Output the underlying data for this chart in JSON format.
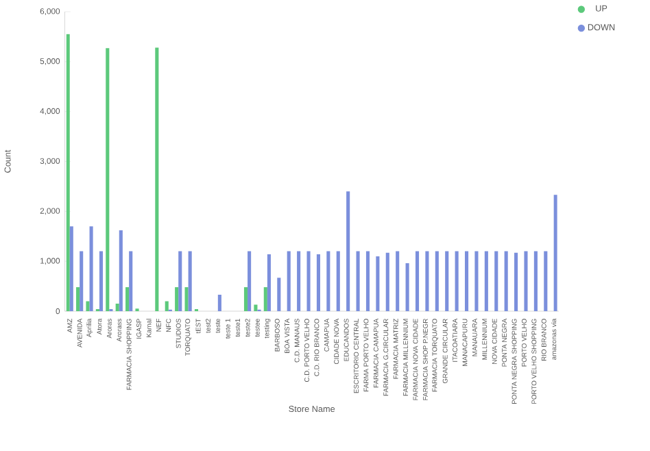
{
  "chart_data": {
    "type": "bar",
    "xlabel": "Store Name",
    "ylabel": "Count",
    "categories": [
      "AMZ",
      "AVENIDA",
      "Aprilia",
      "Atora",
      "Aroras",
      "Arorass",
      "FARMACIA SHOPPING",
      "IGASP",
      "Kamal",
      "NEF",
      "NFC",
      "STUDIOS",
      "TORQUATO",
      "tEST",
      "test2",
      "teste",
      "teste 1",
      "teste1",
      "teste2",
      "testee",
      "testing",
      "BARBOSO",
      "BOA VISTA",
      "C.D. MANAUS",
      "C.D. PORTO VELHO",
      "C.D. RIO BRANCO",
      "CAMAPUA",
      "CIDADE NOVA",
      "EDUCANDOS",
      "ESCRITORIO CENTRAL",
      "FARMA PORTO VELHO",
      "FARMACIA CAMAPUA",
      "FARMACIA G.CIRCULAR",
      "FARMACIA MATRIZ",
      "FARMACIA MILLENNIUM",
      "FARMACIA NOVA CIDADE",
      "FARMACIA SHOP P.NEGR",
      "FARMACIA TORQUATO",
      "GRANDE CIRCULAR",
      "ITACOATIARA",
      "MANACAPURU",
      "MANAUARA",
      "MILLENNIUM",
      "NOVA CIDADE",
      "PONTA NEGRA",
      "PONTA NEGRA SHOPPING",
      "PORTO VELHO",
      "PORTO VELHO SHOPPING",
      "RIO BRANCO",
      "amazonas via"
    ],
    "series": [
      {
        "name": "UP",
        "color": "#5cc97b",
        "values": [
          5550,
          480,
          200,
          40,
          5270,
          150,
          480,
          50,
          null,
          5280,
          200,
          480,
          480,
          40,
          null,
          null,
          null,
          null,
          480,
          130,
          480,
          null,
          null,
          null,
          null,
          null,
          null,
          null,
          null,
          null,
          null,
          null,
          null,
          null,
          null,
          null,
          null,
          null,
          null,
          null,
          null,
          null,
          null,
          null,
          null,
          null,
          null,
          null,
          null,
          null
        ]
      },
      {
        "name": "DOWN",
        "color": "#7b8fdc",
        "values": [
          1700,
          1200,
          1700,
          1200,
          40,
          1620,
          1200,
          null,
          null,
          null,
          30,
          1200,
          1200,
          null,
          null,
          330,
          null,
          null,
          1200,
          30,
          1140,
          670,
          1200,
          1200,
          1200,
          1140,
          1200,
          1200,
          2400,
          1200,
          1200,
          1100,
          1170,
          1200,
          960,
          1200,
          1200,
          1200,
          1200,
          1200,
          1200,
          1200,
          1200,
          1200,
          1200,
          1170,
          1200,
          1200,
          1200,
          2330
        ]
      }
    ],
    "ylim": [
      0,
      6000
    ],
    "yticks": [
      0,
      {
        "value": 1000,
        "label": "1,000"
      },
      {
        "value": 2000,
        "label": "2,000"
      },
      {
        "value": 3000,
        "label": "3,000"
      },
      {
        "value": 4000,
        "label": "4,000"
      },
      {
        "value": 5000,
        "label": "5,000"
      },
      {
        "value": 6000,
        "label": "6,000"
      }
    ],
    "legend": "top right",
    "marker": "circle",
    "grid": false
  }
}
